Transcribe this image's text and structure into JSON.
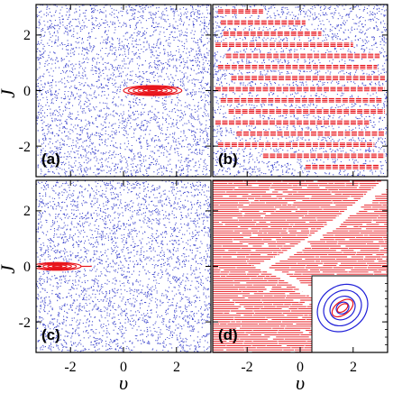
{
  "colors": {
    "chaotic": "#2b35c8",
    "regular": "#e8141b",
    "inset": "#2020d8",
    "frame": "#000000"
  },
  "chart_data": {
    "type": "scatter",
    "xlabel": "υ",
    "ylabel": "J",
    "xlim": [
      -3.3,
      3.3
    ],
    "ylim": [
      -3.1,
      3.1
    ],
    "xticks": [
      -2,
      0,
      2
    ],
    "yticks": [
      -2,
      0,
      2
    ],
    "xtick_labels": [
      "-2",
      "0",
      "2"
    ],
    "ytick_labels": [
      "-2",
      "0",
      "2"
    ],
    "panels": [
      {
        "label": "(a)",
        "background": "chaotic-sea",
        "regular_island": {
          "kind": "nested-ellipses",
          "center": [
            1.1,
            0.0
          ],
          "half_width": 1.1,
          "half_height": 0.18,
          "rings": 6
        }
      },
      {
        "label": "(b)",
        "background": "chaotic-sea",
        "regular_bands": [
          {
            "y": 2.85,
            "x": [
              -3.1,
              -1.4
            ]
          },
          {
            "y": 2.45,
            "x": [
              -3.0,
              0.2
            ]
          },
          {
            "y": 2.05,
            "x": [
              -2.9,
              0.8
            ]
          },
          {
            "y": 1.65,
            "x": [
              -3.2,
              2.0
            ]
          },
          {
            "y": 1.25,
            "x": [
              -2.8,
              3.0
            ]
          },
          {
            "y": 0.85,
            "x": [
              -3.1,
              2.9
            ]
          },
          {
            "y": 0.45,
            "x": [
              -2.6,
              3.2
            ]
          },
          {
            "y": 0.05,
            "x": [
              -3.2,
              3.2
            ]
          },
          {
            "y": -0.35,
            "x": [
              -3.0,
              3.1
            ]
          },
          {
            "y": -0.75,
            "x": [
              -2.7,
              3.2
            ]
          },
          {
            "y": -1.15,
            "x": [
              -3.2,
              2.6
            ]
          },
          {
            "y": -1.55,
            "x": [
              -2.4,
              3.2
            ]
          },
          {
            "y": -1.95,
            "x": [
              -3.1,
              2.8
            ]
          },
          {
            "y": -2.35,
            "x": [
              -1.4,
              3.2
            ]
          },
          {
            "y": -2.75,
            "x": [
              0.2,
              3.0
            ]
          }
        ]
      },
      {
        "label": "(c)",
        "background": "chaotic-sea",
        "regular_island": {
          "kind": "nested-ellipses",
          "center": [
            -2.5,
            0.0
          ],
          "half_width": 0.9,
          "half_height": 0.14,
          "rings": 5,
          "tail_to": -1.2
        }
      },
      {
        "label": "(d)",
        "background": "white",
        "regular_region": {
          "kind": "horizontal-segments",
          "boundary_vertex": [
            -1.7,
            0.0
          ],
          "boundary_edge_y": 3.1,
          "boundary_edge_x": 3.3
        },
        "inset": {
          "kind": "nested-ellipses",
          "center": [
            1.6,
            -1.5
          ],
          "half_width": 1.0,
          "half_height": 0.8,
          "tilt_deg": -35,
          "rings": 4
        }
      }
    ]
  }
}
